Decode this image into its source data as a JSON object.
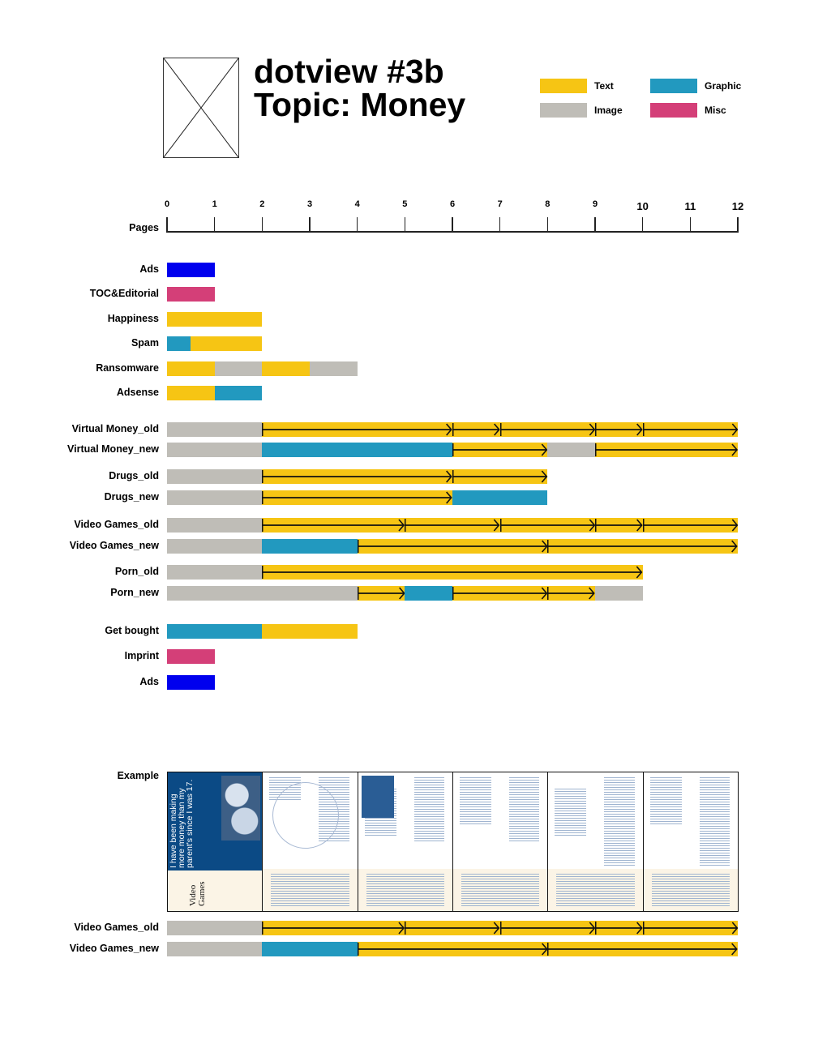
{
  "header": {
    "title_line1": "dotview #3b",
    "title_line2": "Topic: Money"
  },
  "colors": {
    "text": "#f6c514",
    "image": "#bfbdb7",
    "graphic": "#2299bf",
    "misc": "#d43f78",
    "ads": "#0000ee"
  },
  "legend": [
    {
      "label": "Text",
      "type": "text"
    },
    {
      "label": "Graphic",
      "type": "graphic"
    },
    {
      "label": "Image",
      "type": "image"
    },
    {
      "label": "Misc",
      "type": "misc"
    }
  ],
  "chart_data": {
    "type": "timeline",
    "axis_label": "Pages",
    "xlim": [
      0,
      12
    ],
    "ticks": [
      "0",
      "1",
      "2",
      "3",
      "4",
      "5",
      "6",
      "7",
      "8",
      "9",
      "10",
      "11",
      "12"
    ],
    "rows": [
      {
        "label": "Ads",
        "segments": [
          [
            0,
            1,
            "ads"
          ]
        ]
      },
      {
        "label": "TOC&Editorial",
        "segments": [
          [
            0,
            1,
            "misc"
          ]
        ]
      },
      {
        "label": "Happiness",
        "segments": [
          [
            0,
            2,
            "text"
          ]
        ]
      },
      {
        "label": "Spam",
        "segments": [
          [
            0,
            0.5,
            "graphic"
          ],
          [
            0.5,
            2,
            "text"
          ]
        ]
      },
      {
        "label": "Ransomware",
        "segments": [
          [
            0,
            1,
            "text"
          ],
          [
            1,
            2,
            "image"
          ],
          [
            2,
            3,
            "text"
          ],
          [
            3,
            4,
            "image"
          ]
        ]
      },
      {
        "label": "Adsense",
        "segments": [
          [
            0,
            1,
            "text"
          ],
          [
            1,
            2,
            "graphic"
          ]
        ]
      },
      {
        "label": "Virtual Money_old",
        "segments": [
          [
            0,
            2,
            "image"
          ],
          [
            2,
            6,
            "text-arrow"
          ],
          [
            6,
            7,
            "text-arrow"
          ],
          [
            7,
            9,
            "text-arrow"
          ],
          [
            9,
            10,
            "text-arrow"
          ],
          [
            10,
            12,
            "text-arrow"
          ]
        ]
      },
      {
        "label": "Virtual Money_new",
        "segments": [
          [
            0,
            2,
            "image"
          ],
          [
            2,
            6,
            "graphic"
          ],
          [
            6,
            8,
            "text-arrow"
          ],
          [
            8,
            9,
            "image"
          ],
          [
            9,
            12,
            "text-arrow"
          ]
        ]
      },
      {
        "label": "Drugs_old",
        "segments": [
          [
            0,
            2,
            "image"
          ],
          [
            2,
            6,
            "text-arrow"
          ],
          [
            6,
            8,
            "text-arrow"
          ]
        ]
      },
      {
        "label": "Drugs_new",
        "segments": [
          [
            0,
            2,
            "image"
          ],
          [
            2,
            6,
            "text-arrow"
          ],
          [
            6,
            8,
            "graphic"
          ]
        ]
      },
      {
        "label": "Video Games_old",
        "segments": [
          [
            0,
            2,
            "image"
          ],
          [
            2,
            5,
            "text-arrow"
          ],
          [
            5,
            7,
            "text-arrow"
          ],
          [
            7,
            9,
            "text-arrow"
          ],
          [
            9,
            10,
            "text-arrow"
          ],
          [
            10,
            12,
            "text-arrow"
          ]
        ]
      },
      {
        "label": "Video Games_new",
        "segments": [
          [
            0,
            2,
            "image"
          ],
          [
            2,
            4,
            "graphic"
          ],
          [
            4,
            8,
            "text-arrow"
          ],
          [
            8,
            12,
            "text-arrow"
          ]
        ]
      },
      {
        "label": "Porn_old",
        "segments": [
          [
            0,
            2,
            "image"
          ],
          [
            2,
            10,
            "text-arrow"
          ]
        ]
      },
      {
        "label": "Porn_new",
        "segments": [
          [
            0,
            4,
            "image"
          ],
          [
            4,
            5,
            "text-arrow"
          ],
          [
            5,
            6,
            "graphic"
          ],
          [
            6,
            8,
            "text-arrow"
          ],
          [
            8,
            9,
            "text-arrow"
          ],
          [
            9,
            10,
            "image"
          ]
        ]
      },
      {
        "label": "Get bought",
        "segments": [
          [
            0,
            2,
            "graphic"
          ],
          [
            2,
            4,
            "text"
          ]
        ]
      },
      {
        "label": "Imprint",
        "segments": [
          [
            0,
            1,
            "misc"
          ]
        ]
      },
      {
        "label": "Ads",
        "segments": [
          [
            0,
            1,
            "ads"
          ]
        ]
      }
    ],
    "example": {
      "label": "Example",
      "cover_quote": "I have been making more money than my parent's since I was 17.",
      "cover_section": "Video Games",
      "rows": [
        {
          "label": "Video Games_old",
          "segments": [
            [
              0,
              2,
              "image"
            ],
            [
              2,
              5,
              "text-arrow"
            ],
            [
              5,
              7,
              "text-arrow"
            ],
            [
              7,
              9,
              "text-arrow"
            ],
            [
              9,
              10,
              "text-arrow"
            ],
            [
              10,
              12,
              "text-arrow"
            ]
          ]
        },
        {
          "label": "Video Games_new",
          "segments": [
            [
              0,
              2,
              "image"
            ],
            [
              2,
              4,
              "graphic"
            ],
            [
              4,
              8,
              "text-arrow"
            ],
            [
              8,
              12,
              "text-arrow"
            ]
          ]
        }
      ]
    }
  }
}
